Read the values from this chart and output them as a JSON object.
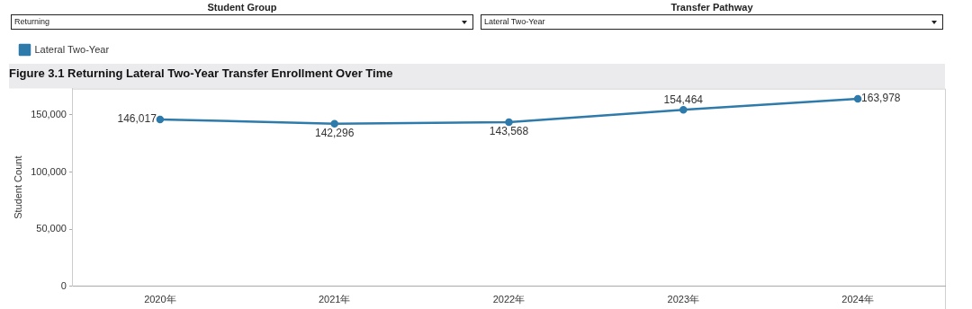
{
  "chart_data": {
    "type": "line",
    "title": "Figure 3.1 Returning Lateral Two-Year Transfer Enrollment Over Time",
    "ylabel": "Student Count",
    "categories": [
      "2020年",
      "2021年",
      "2022年",
      "2023年",
      "2024年"
    ],
    "series": [
      {
        "name": "Lateral Two-Year",
        "color": "#2e7bab",
        "values": [
          146017,
          142296,
          143568,
          154464,
          163978
        ],
        "value_labels": [
          "146,017",
          "142,296",
          "143,568",
          "154,464",
          "163,978"
        ]
      }
    ],
    "ylim": [
      0,
      173000
    ],
    "yticks": [
      {
        "value": 0,
        "label": "0"
      },
      {
        "value": 50000,
        "label": "50,000"
      },
      {
        "value": 100000,
        "label": "100,000"
      },
      {
        "value": 150000,
        "label": "150,000"
      }
    ],
    "annotations": [
      "Student Group",
      "Returning",
      "Transfer Pathway",
      "Lateral Two-Year"
    ],
    "legend": "top left",
    "marker": "circle",
    "line_style": "solid",
    "grid": false
  }
}
